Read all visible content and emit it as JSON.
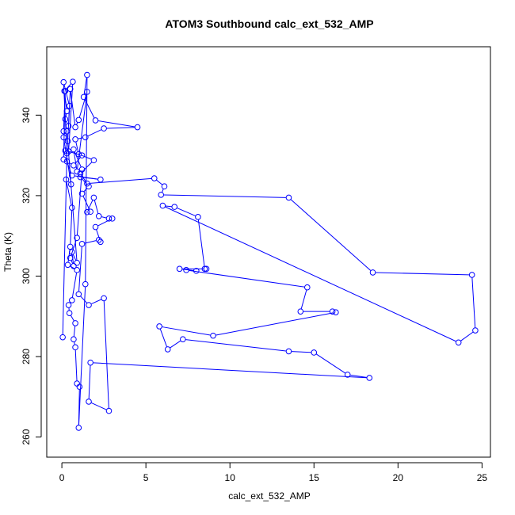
{
  "chart_data": {
    "type": "scatter",
    "title": "ATOM3 Southbound calc_ext_532_AMP",
    "xlabel": "calc_ext_532_AMP",
    "ylabel": "Theta (K)",
    "xlim": [
      -0.9,
      25.5
    ],
    "ylim": [
      255,
      357
    ],
    "xticks": [
      0,
      5,
      10,
      15,
      20,
      25
    ],
    "yticks": [
      260,
      280,
      300,
      320,
      340
    ],
    "connected": true,
    "marker": "open-circle",
    "grid": false,
    "series": [
      {
        "color": "#0000ff",
        "points": [
          [
            0.05,
            284.8
          ],
          [
            0.3,
            330.5
          ],
          [
            0.1,
            348.2
          ],
          [
            0.45,
            342.3
          ],
          [
            0.35,
            333.5
          ],
          [
            0.1,
            334.5
          ],
          [
            0.55,
            322.8
          ],
          [
            0.25,
            324.0
          ],
          [
            0.6,
            317.0
          ],
          [
            0.5,
            307.3
          ],
          [
            0.35,
            302.8
          ],
          [
            0.9,
            301.5
          ],
          [
            0.6,
            294.0
          ],
          [
            0.4,
            292.8
          ],
          [
            0.45,
            290.8
          ],
          [
            0.8,
            288.3
          ],
          [
            0.7,
            284.3
          ],
          [
            0.8,
            282.3
          ],
          [
            0.9,
            273.3
          ],
          [
            1.05,
            272.5
          ],
          [
            1.0,
            262.3
          ],
          [
            1.4,
            298.0
          ],
          [
            1.5,
            350.0
          ],
          [
            1.3,
            344.5
          ],
          [
            2.0,
            338.7
          ],
          [
            4.5,
            337.0
          ],
          [
            2.5,
            336.7
          ],
          [
            1.4,
            334.5
          ],
          [
            0.8,
            334.0
          ],
          [
            1.0,
            330.3
          ],
          [
            1.9,
            328.8
          ],
          [
            1.1,
            325.5
          ],
          [
            1.5,
            323.0
          ],
          [
            5.5,
            324.3
          ],
          [
            6.1,
            322.3
          ],
          [
            5.9,
            320.2
          ],
          [
            13.5,
            319.5
          ],
          [
            18.5,
            300.9
          ],
          [
            24.4,
            300.3
          ],
          [
            24.6,
            286.5
          ],
          [
            23.6,
            283.5
          ],
          [
            6.0,
            317.5
          ],
          [
            6.7,
            317.2
          ],
          [
            8.1,
            314.7
          ],
          [
            8.5,
            301.8
          ],
          [
            8.6,
            301.8
          ],
          [
            7.0,
            301.8
          ],
          [
            8.0,
            301.3
          ],
          [
            7.4,
            301.5
          ],
          [
            14.6,
            297.2
          ],
          [
            14.2,
            291.2
          ],
          [
            16.1,
            291.2
          ],
          [
            16.3,
            291.0
          ],
          [
            9.0,
            285.2
          ],
          [
            5.8,
            287.5
          ],
          [
            6.3,
            281.8
          ],
          [
            7.2,
            284.3
          ],
          [
            13.5,
            281.3
          ],
          [
            15.0,
            281.0
          ],
          [
            17.0,
            275.5
          ],
          [
            18.3,
            274.7
          ],
          [
            1.7,
            278.5
          ],
          [
            1.6,
            268.8
          ],
          [
            2.8,
            266.5
          ],
          [
            2.5,
            294.5
          ],
          [
            1.6,
            292.8
          ],
          [
            1.0,
            295.5
          ],
          [
            1.2,
            308.0
          ],
          [
            2.2,
            309.0
          ],
          [
            2.3,
            308.5
          ],
          [
            2.0,
            312.2
          ],
          [
            3.0,
            314.3
          ],
          [
            2.8,
            314.3
          ],
          [
            2.2,
            314.9
          ],
          [
            1.9,
            319.5
          ],
          [
            1.5,
            315.9
          ],
          [
            1.7,
            316.0
          ],
          [
            1.2,
            320.5
          ],
          [
            1.6,
            322.3
          ],
          [
            1.1,
            324.6
          ],
          [
            2.3,
            324.0
          ],
          [
            0.6,
            325.0
          ],
          [
            0.3,
            328.5
          ],
          [
            0.7,
            327.5
          ],
          [
            1.2,
            330.0
          ],
          [
            0.2,
            331.2
          ],
          [
            0.4,
            331.0
          ],
          [
            0.65,
            348.3
          ],
          [
            0.15,
            346.0
          ],
          [
            0.3,
            341.0
          ],
          [
            0.2,
            339.0
          ],
          [
            0.4,
            337.3
          ],
          [
            0.5,
            346.5
          ],
          [
            0.8,
            337.0
          ],
          [
            1.0,
            338.8
          ],
          [
            1.5,
            345.8
          ],
          [
            0.9,
            326.0
          ],
          [
            0.7,
            331.5
          ],
          [
            1.2,
            326.5
          ],
          [
            0.9,
            309.5
          ],
          [
            0.5,
            304.5
          ],
          [
            0.7,
            302.5
          ],
          [
            0.6,
            306.0
          ],
          [
            0.9,
            303.3
          ],
          [
            0.3,
            336.0
          ],
          [
            0.1,
            336.0
          ],
          [
            0.2,
            346.0
          ],
          [
            0.1,
            329.0
          ]
        ]
      }
    ]
  }
}
